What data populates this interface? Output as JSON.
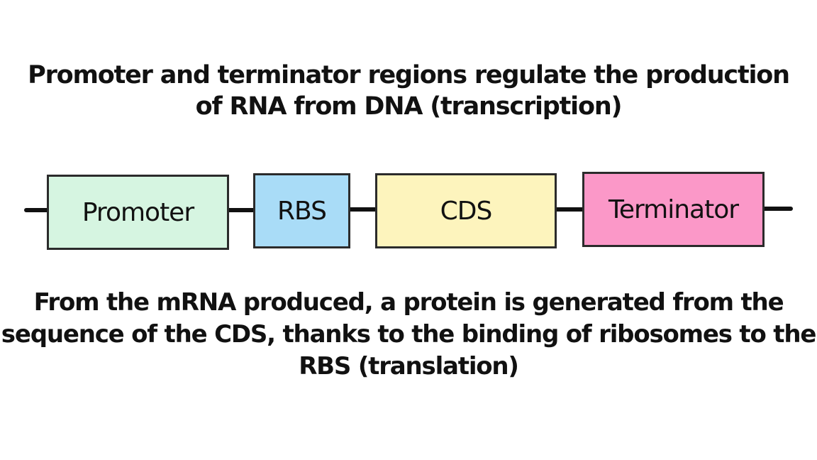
{
  "top_caption": {
    "line1": "Promoter and terminator regions regulate the production",
    "line2": "of RNA from DNA (transcription)"
  },
  "parts": {
    "promoter": {
      "label": "Promoter",
      "color": "#d6f5e1"
    },
    "rbs": {
      "label": "RBS",
      "color": "#a9dcf7"
    },
    "cds": {
      "label": "CDS",
      "color": "#fdf4bd"
    },
    "terminator": {
      "label": "Terminator",
      "color": "#fb98c8"
    }
  },
  "bottom_caption": {
    "line1": "From the mRNA produced, a protein is generated from the",
    "line2": "sequence of the CDS, thanks to the binding of ribosomes to the",
    "line3": "RBS (translation)"
  }
}
